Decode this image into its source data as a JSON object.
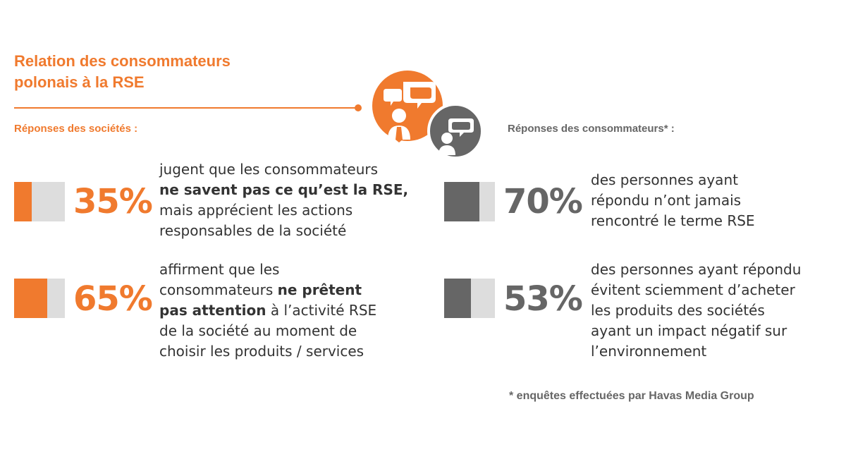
{
  "title": {
    "line1": "Relation des consommateurs",
    "line2": "polonais à la RSE"
  },
  "colors": {
    "orange": "#f07a2e",
    "dark_gray": "#666666",
    "light_gray": "#dddddd"
  },
  "icons": [
    "people-speech-bubbles-icon"
  ],
  "companies": {
    "label": "Réponses des sociétés :",
    "stats": [
      {
        "percent": "35%",
        "value": 0.35,
        "lines": [
          {
            "pre": "jugent que les consommateurs",
            "bold": "",
            "post": ""
          },
          {
            "pre": "",
            "bold": "ne savent pas ce qu’est la RSE,",
            "post": ""
          },
          {
            "pre": "mais apprécient les actions",
            "bold": "",
            "post": ""
          },
          {
            "pre": "responsables de la société",
            "bold": "",
            "post": ""
          }
        ]
      },
      {
        "percent": "65%",
        "value": 0.65,
        "lines": [
          {
            "pre": "affirment que les",
            "bold": "",
            "post": ""
          },
          {
            "pre": "consommateurs ",
            "bold": "ne prêtent",
            "post": ""
          },
          {
            "pre": "",
            "bold": "pas attention",
            "post": " à l’activité RSE"
          },
          {
            "pre": "de la société au moment de",
            "bold": "",
            "post": ""
          },
          {
            "pre": "choisir les produits / services",
            "bold": "",
            "post": ""
          }
        ]
      }
    ]
  },
  "consumers": {
    "label": "Réponses des consommateurs* :",
    "stats": [
      {
        "percent": "70%",
        "value": 0.7,
        "lines": [
          {
            "pre": "des personnes ayant",
            "bold": "",
            "post": ""
          },
          {
            "pre": "répondu n’ont jamais",
            "bold": "",
            "post": ""
          },
          {
            "pre": "rencontré le terme RSE",
            "bold": "",
            "post": ""
          }
        ]
      },
      {
        "percent": "53%",
        "value": 0.53,
        "lines": [
          {
            "pre": "des personnes ayant répondu",
            "bold": "",
            "post": ""
          },
          {
            "pre": "évitent sciemment d’acheter",
            "bold": "",
            "post": ""
          },
          {
            "pre": "les produits des sociétés",
            "bold": "",
            "post": ""
          },
          {
            "pre": "ayant un impact négatif sur",
            "bold": "",
            "post": ""
          },
          {
            "pre": "l’environnement",
            "bold": "",
            "post": ""
          }
        ]
      }
    ]
  },
  "footnote": "* enquêtes effectuées par Havas Media Group"
}
